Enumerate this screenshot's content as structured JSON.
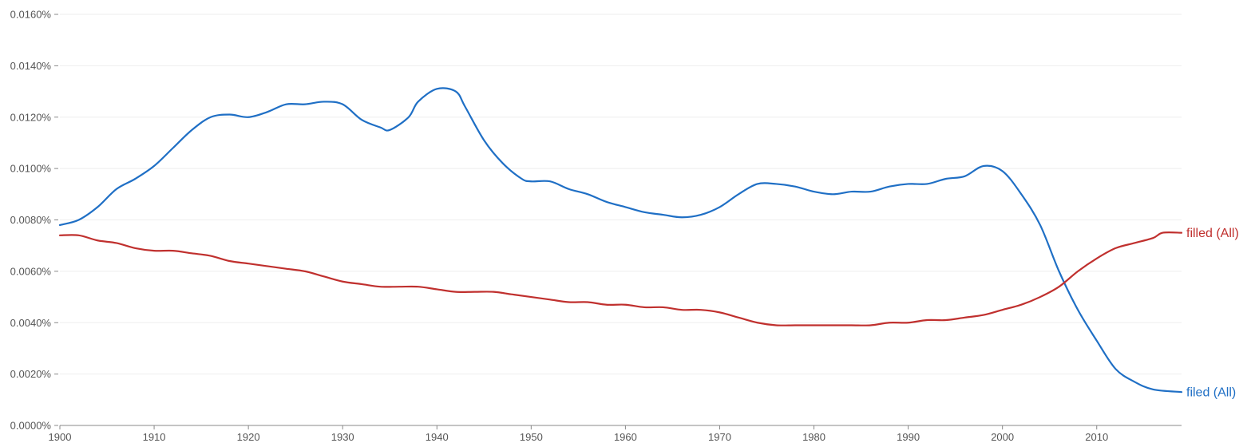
{
  "colors": {
    "filed": "#1f6fc5",
    "filled": "#c0302e",
    "axis": "#888888",
    "grid": "#eeeeee",
    "tick_text": "#555555"
  },
  "chart_data": {
    "type": "line",
    "title": "",
    "xlabel": "",
    "ylabel": "",
    "xlim": [
      1900,
      2019
    ],
    "ylim": [
      0,
      0.016
    ],
    "x_ticks": [
      1900,
      1910,
      1920,
      1930,
      1940,
      1950,
      1960,
      1970,
      1980,
      1990,
      2000,
      2010
    ],
    "y_ticks": [
      {
        "value": 0.0,
        "label": "0.0000%"
      },
      {
        "value": 0.002,
        "label": "0.0020%"
      },
      {
        "value": 0.004,
        "label": "0.0040%"
      },
      {
        "value": 0.006,
        "label": "0.0060%"
      },
      {
        "value": 0.008,
        "label": "0.0080%"
      },
      {
        "value": 0.01,
        "label": "0.0100%"
      },
      {
        "value": 0.012,
        "label": "0.0120%"
      },
      {
        "value": 0.014,
        "label": "0.0140%"
      },
      {
        "value": 0.016,
        "label": "0.0160%"
      }
    ],
    "grid": true,
    "legend": "inline labels at right end of lines",
    "series": [
      {
        "name": "filed (All)",
        "color_key": "filed",
        "points": [
          [
            1900,
            0.0078
          ],
          [
            1902,
            0.008
          ],
          [
            1904,
            0.0085
          ],
          [
            1906,
            0.0092
          ],
          [
            1908,
            0.0096
          ],
          [
            1910,
            0.0101
          ],
          [
            1912,
            0.0108
          ],
          [
            1914,
            0.0115
          ],
          [
            1916,
            0.012
          ],
          [
            1918,
            0.0121
          ],
          [
            1920,
            0.012
          ],
          [
            1922,
            0.0122
          ],
          [
            1924,
            0.0125
          ],
          [
            1926,
            0.0125
          ],
          [
            1928,
            0.0126
          ],
          [
            1930,
            0.0125
          ],
          [
            1932,
            0.0119
          ],
          [
            1934,
            0.0116
          ],
          [
            1935,
            0.0115
          ],
          [
            1937,
            0.012
          ],
          [
            1938,
            0.0126
          ],
          [
            1940,
            0.0131
          ],
          [
            1942,
            0.013
          ],
          [
            1943,
            0.0124
          ],
          [
            1945,
            0.0111
          ],
          [
            1947,
            0.0102
          ],
          [
            1949,
            0.0096
          ],
          [
            1950,
            0.0095
          ],
          [
            1952,
            0.0095
          ],
          [
            1954,
            0.0092
          ],
          [
            1956,
            0.009
          ],
          [
            1958,
            0.0087
          ],
          [
            1960,
            0.0085
          ],
          [
            1962,
            0.0083
          ],
          [
            1964,
            0.0082
          ],
          [
            1966,
            0.0081
          ],
          [
            1968,
            0.0082
          ],
          [
            1970,
            0.0085
          ],
          [
            1972,
            0.009
          ],
          [
            1974,
            0.0094
          ],
          [
            1976,
            0.0094
          ],
          [
            1978,
            0.0093
          ],
          [
            1980,
            0.0091
          ],
          [
            1982,
            0.009
          ],
          [
            1984,
            0.0091
          ],
          [
            1986,
            0.0091
          ],
          [
            1988,
            0.0093
          ],
          [
            1990,
            0.0094
          ],
          [
            1992,
            0.0094
          ],
          [
            1994,
            0.0096
          ],
          [
            1996,
            0.0097
          ],
          [
            1998,
            0.0101
          ],
          [
            2000,
            0.0099
          ],
          [
            2002,
            0.009
          ],
          [
            2004,
            0.0078
          ],
          [
            2006,
            0.006
          ],
          [
            2008,
            0.0045
          ],
          [
            2010,
            0.0033
          ],
          [
            2012,
            0.0022
          ],
          [
            2014,
            0.0017
          ],
          [
            2016,
            0.0014
          ],
          [
            2019,
            0.0013
          ]
        ]
      },
      {
        "name": "filled (All)",
        "color_key": "filled",
        "points": [
          [
            1900,
            0.0074
          ],
          [
            1902,
            0.0074
          ],
          [
            1904,
            0.0072
          ],
          [
            1906,
            0.0071
          ],
          [
            1908,
            0.0069
          ],
          [
            1910,
            0.0068
          ],
          [
            1912,
            0.0068
          ],
          [
            1914,
            0.0067
          ],
          [
            1916,
            0.0066
          ],
          [
            1918,
            0.0064
          ],
          [
            1920,
            0.0063
          ],
          [
            1922,
            0.0062
          ],
          [
            1924,
            0.0061
          ],
          [
            1926,
            0.006
          ],
          [
            1928,
            0.0058
          ],
          [
            1930,
            0.0056
          ],
          [
            1932,
            0.0055
          ],
          [
            1934,
            0.0054
          ],
          [
            1936,
            0.0054
          ],
          [
            1938,
            0.0054
          ],
          [
            1940,
            0.0053
          ],
          [
            1942,
            0.0052
          ],
          [
            1944,
            0.0052
          ],
          [
            1946,
            0.0052
          ],
          [
            1948,
            0.0051
          ],
          [
            1950,
            0.005
          ],
          [
            1952,
            0.0049
          ],
          [
            1954,
            0.0048
          ],
          [
            1956,
            0.0048
          ],
          [
            1958,
            0.0047
          ],
          [
            1960,
            0.0047
          ],
          [
            1962,
            0.0046
          ],
          [
            1964,
            0.0046
          ],
          [
            1966,
            0.0045
          ],
          [
            1968,
            0.0045
          ],
          [
            1970,
            0.0044
          ],
          [
            1972,
            0.0042
          ],
          [
            1974,
            0.004
          ],
          [
            1976,
            0.0039
          ],
          [
            1978,
            0.0039
          ],
          [
            1980,
            0.0039
          ],
          [
            1982,
            0.0039
          ],
          [
            1984,
            0.0039
          ],
          [
            1986,
            0.0039
          ],
          [
            1988,
            0.004
          ],
          [
            1990,
            0.004
          ],
          [
            1992,
            0.0041
          ],
          [
            1994,
            0.0041
          ],
          [
            1996,
            0.0042
          ],
          [
            1998,
            0.0043
          ],
          [
            2000,
            0.0045
          ],
          [
            2002,
            0.0047
          ],
          [
            2004,
            0.005
          ],
          [
            2006,
            0.0054
          ],
          [
            2008,
            0.006
          ],
          [
            2010,
            0.0065
          ],
          [
            2012,
            0.0069
          ],
          [
            2014,
            0.0071
          ],
          [
            2016,
            0.0073
          ],
          [
            2017,
            0.0075
          ],
          [
            2019,
            0.0075
          ]
        ]
      }
    ]
  }
}
